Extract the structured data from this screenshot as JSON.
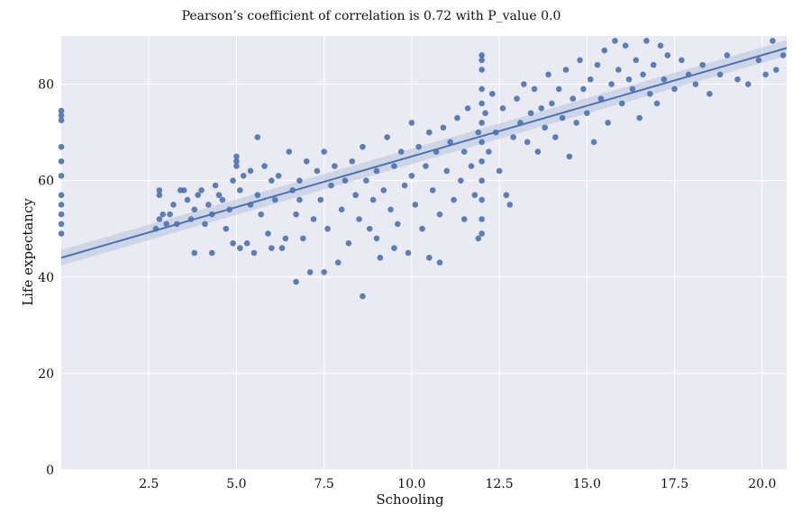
{
  "chart_data": {
    "type": "scatter",
    "title": "Pearson’s coefficient of correlation is 0.72 with P_value 0.0",
    "xlabel": "Schooling",
    "ylabel": "Life expectancy",
    "xlim": [
      0,
      20.7
    ],
    "ylim": [
      0,
      90
    ],
    "xticks": [
      "2.5",
      "5.0",
      "7.5",
      "10.0",
      "12.5",
      "15.0",
      "17.5",
      "20.0"
    ],
    "yticks": [
      "0",
      "20",
      "40",
      "60",
      "80"
    ],
    "grid": true,
    "background_color": "#eaeaf2",
    "point_color": "#4c72b0",
    "regression_line": {
      "x": [
        0,
        20.7
      ],
      "y": [
        44.0,
        87.5
      ]
    },
    "confidence_band_color": "#b7c3de",
    "points": [
      [
        0.0,
        74.5
      ],
      [
        0.0,
        73.5
      ],
      [
        0.0,
        72.5
      ],
      [
        0.0,
        67
      ],
      [
        0.0,
        64
      ],
      [
        0.0,
        61
      ],
      [
        0.0,
        57
      ],
      [
        0.0,
        55
      ],
      [
        0.0,
        53
      ],
      [
        0.0,
        51
      ],
      [
        0.0,
        49
      ],
      [
        2.7,
        50
      ],
      [
        2.8,
        52
      ],
      [
        2.9,
        53
      ],
      [
        2.8,
        57
      ],
      [
        2.8,
        58
      ],
      [
        3.0,
        51
      ],
      [
        3.1,
        53
      ],
      [
        3.2,
        55
      ],
      [
        3.3,
        51
      ],
      [
        3.4,
        58
      ],
      [
        3.5,
        58
      ],
      [
        3.6,
        56
      ],
      [
        3.7,
        52
      ],
      [
        3.8,
        45
      ],
      [
        3.8,
        54
      ],
      [
        3.9,
        57
      ],
      [
        4.0,
        58
      ],
      [
        4.1,
        51
      ],
      [
        4.2,
        55
      ],
      [
        4.3,
        53
      ],
      [
        4.4,
        59
      ],
      [
        4.5,
        57
      ],
      [
        4.6,
        56
      ],
      [
        4.7,
        50
      ],
      [
        4.8,
        54
      ],
      [
        4.9,
        60
      ],
      [
        4.9,
        47
      ],
      [
        4.3,
        45
      ],
      [
        5.0,
        65
      ],
      [
        5.0,
        64
      ],
      [
        5.0,
        63
      ],
      [
        5.1,
        58
      ],
      [
        5.1,
        46
      ],
      [
        5.2,
        61
      ],
      [
        5.3,
        47
      ],
      [
        5.4,
        55
      ],
      [
        5.4,
        62
      ],
      [
        5.5,
        45
      ],
      [
        5.6,
        69
      ],
      [
        5.6,
        57
      ],
      [
        5.7,
        53
      ],
      [
        5.8,
        63
      ],
      [
        5.9,
        49
      ],
      [
        6.0,
        46
      ],
      [
        6.0,
        60
      ],
      [
        6.1,
        56
      ],
      [
        6.2,
        61
      ],
      [
        6.3,
        46
      ],
      [
        6.4,
        48
      ],
      [
        6.5,
        66
      ],
      [
        6.6,
        58
      ],
      [
        6.7,
        39
      ],
      [
        6.7,
        53
      ],
      [
        6.8,
        60
      ],
      [
        6.8,
        56
      ],
      [
        6.9,
        48
      ],
      [
        7.0,
        64
      ],
      [
        7.1,
        41
      ],
      [
        7.2,
        52
      ],
      [
        7.3,
        62
      ],
      [
        7.4,
        56
      ],
      [
        7.5,
        66
      ],
      [
        7.5,
        41
      ],
      [
        7.6,
        50
      ],
      [
        7.7,
        59
      ],
      [
        7.8,
        63
      ],
      [
        7.9,
        43
      ],
      [
        8.0,
        54
      ],
      [
        8.1,
        60
      ],
      [
        8.2,
        47
      ],
      [
        8.3,
        64
      ],
      [
        8.4,
        57
      ],
      [
        8.5,
        52
      ],
      [
        8.6,
        36
      ],
      [
        8.6,
        67
      ],
      [
        8.7,
        60
      ],
      [
        8.8,
        50
      ],
      [
        8.9,
        56
      ],
      [
        9.0,
        62
      ],
      [
        9.0,
        48
      ],
      [
        9.1,
        44
      ],
      [
        9.2,
        58
      ],
      [
        9.3,
        69
      ],
      [
        9.4,
        54
      ],
      [
        9.5,
        46
      ],
      [
        9.5,
        63
      ],
      [
        9.6,
        51
      ],
      [
        9.7,
        66
      ],
      [
        9.8,
        59
      ],
      [
        9.9,
        45
      ],
      [
        10.0,
        61
      ],
      [
        10.0,
        72
      ],
      [
        10.1,
        55
      ],
      [
        10.2,
        67
      ],
      [
        10.3,
        50
      ],
      [
        10.4,
        63
      ],
      [
        10.5,
        70
      ],
      [
        10.5,
        44
      ],
      [
        10.6,
        58
      ],
      [
        10.7,
        66
      ],
      [
        10.8,
        53
      ],
      [
        10.8,
        43
      ],
      [
        10.9,
        71
      ],
      [
        11.0,
        62
      ],
      [
        11.1,
        68
      ],
      [
        11.2,
        56
      ],
      [
        11.3,
        73
      ],
      [
        11.4,
        60
      ],
      [
        11.5,
        66
      ],
      [
        11.5,
        52
      ],
      [
        11.6,
        75
      ],
      [
        11.7,
        63
      ],
      [
        11.8,
        57
      ],
      [
        11.9,
        70
      ],
      [
        11.9,
        48
      ],
      [
        12.0,
        86
      ],
      [
        12.0,
        85
      ],
      [
        12.0,
        83
      ],
      [
        12.0,
        79
      ],
      [
        12.0,
        76
      ],
      [
        12.0,
        72
      ],
      [
        12.0,
        68
      ],
      [
        12.0,
        64
      ],
      [
        12.0,
        60
      ],
      [
        12.0,
        56
      ],
      [
        12.0,
        52
      ],
      [
        12.0,
        49
      ],
      [
        12.1,
        74
      ],
      [
        12.2,
        66
      ],
      [
        12.3,
        78
      ],
      [
        12.4,
        70
      ],
      [
        12.5,
        62
      ],
      [
        12.6,
        75
      ],
      [
        12.7,
        57
      ],
      [
        12.8,
        55
      ],
      [
        12.9,
        69
      ],
      [
        13.0,
        77
      ],
      [
        13.1,
        72
      ],
      [
        13.2,
        80
      ],
      [
        13.3,
        68
      ],
      [
        13.4,
        74
      ],
      [
        13.5,
        79
      ],
      [
        13.6,
        66
      ],
      [
        13.7,
        75
      ],
      [
        13.8,
        71
      ],
      [
        13.9,
        82
      ],
      [
        14.0,
        76
      ],
      [
        14.1,
        69
      ],
      [
        14.2,
        79
      ],
      [
        14.3,
        73
      ],
      [
        14.4,
        83
      ],
      [
        14.5,
        65
      ],
      [
        14.6,
        77
      ],
      [
        14.7,
        72
      ],
      [
        14.8,
        85
      ],
      [
        14.9,
        79
      ],
      [
        15.0,
        74
      ],
      [
        15.1,
        81
      ],
      [
        15.2,
        68
      ],
      [
        15.3,
        84
      ],
      [
        15.4,
        77
      ],
      [
        15.5,
        87
      ],
      [
        15.6,
        72
      ],
      [
        15.7,
        80
      ],
      [
        15.8,
        89
      ],
      [
        15.9,
        83
      ],
      [
        16.0,
        76
      ],
      [
        16.1,
        88
      ],
      [
        16.2,
        81
      ],
      [
        16.3,
        79
      ],
      [
        16.4,
        85
      ],
      [
        16.5,
        73
      ],
      [
        16.6,
        82
      ],
      [
        16.7,
        89
      ],
      [
        16.8,
        78
      ],
      [
        16.9,
        84
      ],
      [
        17.0,
        76
      ],
      [
        17.1,
        88
      ],
      [
        17.2,
        81
      ],
      [
        17.3,
        86
      ],
      [
        17.5,
        79
      ],
      [
        17.7,
        85
      ],
      [
        17.9,
        82
      ],
      [
        18.1,
        80
      ],
      [
        18.3,
        84
      ],
      [
        18.5,
        78
      ],
      [
        18.8,
        82
      ],
      [
        19.0,
        86
      ],
      [
        19.3,
        81
      ],
      [
        19.6,
        80
      ],
      [
        19.9,
        85
      ],
      [
        20.1,
        82
      ],
      [
        20.3,
        89
      ],
      [
        20.4,
        83
      ],
      [
        20.6,
        86
      ]
    ]
  }
}
